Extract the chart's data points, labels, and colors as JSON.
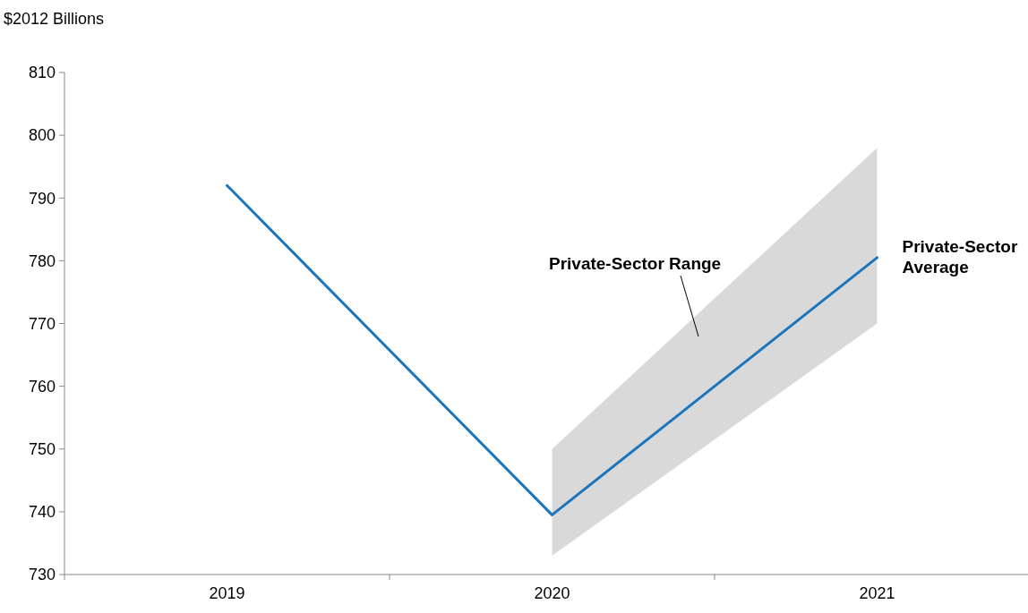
{
  "chart_data": {
    "type": "line",
    "ylabel": "$2012 Billions",
    "categories": [
      "2019",
      "2020",
      "2021"
    ],
    "series": [
      {
        "name": "Private-Sector Average",
        "color": "#1a75bc",
        "values": [
          792,
          739.5,
          780.5
        ],
        "lower": [
          null,
          733,
          770
        ],
        "upper": [
          null,
          750,
          798
        ]
      }
    ],
    "annotations": [
      "Private-Sector Range"
    ],
    "ylim": [
      730,
      810
    ],
    "yticks": [
      730,
      740,
      750,
      760,
      770,
      780,
      790,
      800,
      810
    ],
    "grid": false,
    "legend": false,
    "marker": "none",
    "line_style": "solid"
  }
}
